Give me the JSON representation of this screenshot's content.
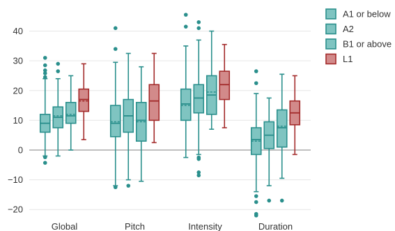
{
  "chart_data": {
    "type": "box",
    "title": "",
    "xlabel": "",
    "ylabel": "",
    "ylim": [
      -23,
      46
    ],
    "y_ticks": [
      40,
      30,
      20,
      10,
      0,
      -10,
      -20
    ],
    "grid": "horizontal",
    "zero_line": true,
    "mean_marker": "dashed line inside box",
    "legend_position": "top-right",
    "categories": [
      "Global",
      "Pitch",
      "Intensity",
      "Duration"
    ],
    "series": [
      {
        "name": "A1 or below",
        "color": "#2a8f8c",
        "fill": "#7fc4c1",
        "boxes": [
          {
            "q1": 6,
            "median": 9,
            "q3": 12,
            "mean": 9,
            "whisker_low": -2,
            "whisker_high": 24,
            "outliers": [
              -4.3,
              -2.4,
              24.5,
              25.8,
              26.8,
              28.5,
              31.0
            ]
          },
          {
            "q1": 4.5,
            "median": 9,
            "q3": 15,
            "mean": 9.5,
            "whisker_low": -12,
            "whisker_high": 29.5,
            "outliers": [
              -12.5,
              34,
              41
            ]
          },
          {
            "q1": 10,
            "median": 15.5,
            "q3": 20.5,
            "mean": 15,
            "whisker_low": -2.5,
            "whisker_high": 35,
            "outliers": [
              41.5,
              45.5
            ]
          },
          {
            "q1": -1.5,
            "median": 3.5,
            "q3": 7.5,
            "mean": 3,
            "whisker_low": -14,
            "whisker_high": 19,
            "outliers": [
              -15.5,
              -17.5,
              -21.5,
              -22,
              22.5,
              26.5
            ]
          }
        ]
      },
      {
        "name": "A2",
        "color": "#2a8f8c",
        "fill": "#7fc4c1",
        "boxes": [
          {
            "q1": 7.5,
            "median": 11,
            "q3": 14.5,
            "mean": 11.5,
            "whisker_low": -2,
            "whisker_high": 24,
            "outliers": [
              26.5,
              29
            ]
          },
          {
            "q1": 6,
            "median": 11.5,
            "q3": 17,
            "mean": 11.5,
            "whisker_low": -10,
            "whisker_high": 32.5,
            "outliers": [
              -12
            ]
          },
          {
            "q1": 12.5,
            "median": 17.5,
            "q3": 22,
            "mean": 17.5,
            "whisker_low": -1.5,
            "whisker_high": 37,
            "outliers": [
              -2.5,
              -3,
              -7.5,
              -8.5,
              41,
              43
            ]
          },
          {
            "q1": 0.5,
            "median": 5,
            "q3": 9.5,
            "mean": 5,
            "whisker_low": -12,
            "whisker_high": 17.5,
            "outliers": [
              -17
            ]
          }
        ]
      },
      {
        "name": "B1 or above",
        "color": "#2a8f8c",
        "fill": "#7fc4c1",
        "boxes": [
          {
            "q1": 9,
            "median": 11.5,
            "q3": 16,
            "mean": 12,
            "whisker_low": 0,
            "whisker_high": 25,
            "outliers": []
          },
          {
            "q1": 3,
            "median": 10,
            "q3": 16,
            "mean": 9.5,
            "whisker_low": -10.5,
            "whisker_high": 28,
            "outliers": []
          },
          {
            "q1": 12,
            "median": 18.5,
            "q3": 25,
            "mean": 19.5,
            "whisker_low": 7,
            "whisker_high": 40,
            "outliers": []
          },
          {
            "q1": 1,
            "median": 7.5,
            "q3": 13.5,
            "mean": 8,
            "whisker_low": -9.5,
            "whisker_high": 25.5,
            "outliers": [
              -17
            ]
          }
        ]
      },
      {
        "name": "L1",
        "color": "#a32b2b",
        "fill": "#d28a8a",
        "boxes": [
          {
            "q1": 13,
            "median": 17,
            "q3": 20.5,
            "mean": 16.5,
            "whisker_low": 3.5,
            "whisker_high": 29,
            "outliers": []
          },
          {
            "q1": 10,
            "median": 16.5,
            "q3": 22,
            "mean": 16.5,
            "whisker_low": 2.5,
            "whisker_high": 32.5,
            "outliers": []
          },
          {
            "q1": 17,
            "median": 22,
            "q3": 26.5,
            "mean": 22,
            "whisker_low": 7.5,
            "whisker_high": 35.5,
            "outliers": []
          },
          {
            "q1": 8.5,
            "median": 12.5,
            "q3": 16.5,
            "mean": 12.5,
            "whisker_low": -1.5,
            "whisker_high": 25,
            "outliers": []
          }
        ]
      }
    ]
  }
}
